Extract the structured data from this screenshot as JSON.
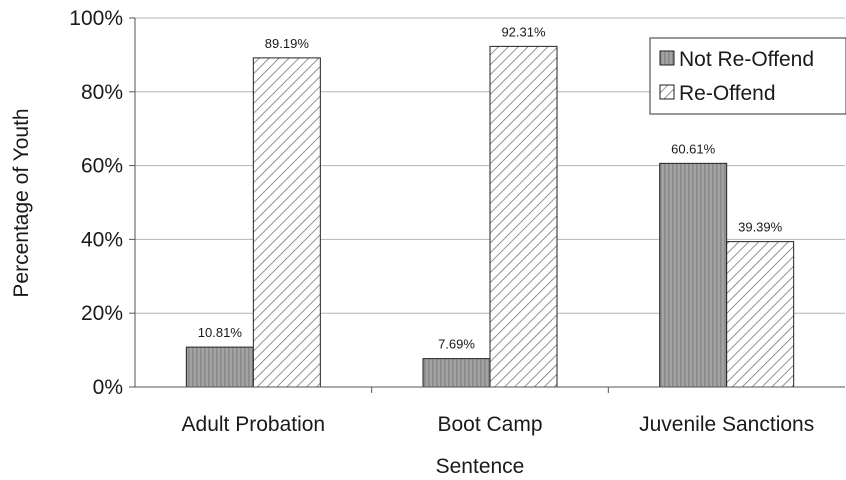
{
  "chart_data": {
    "type": "bar",
    "title": "",
    "xlabel": "Sentence",
    "ylabel": "Percentage of Youth",
    "categories": [
      "Adult Probation",
      "Boot Camp",
      "Juvenile Sanctions"
    ],
    "series": [
      {
        "name": "Not Re-Offend",
        "values": [
          10.81,
          7.69,
          60.61
        ],
        "labels": [
          "10.81%",
          "7.69%",
          "60.61%"
        ],
        "pattern": "vertical-stripe-gray",
        "color": "#9a9a9a"
      },
      {
        "name": "Re-Offend",
        "values": [
          89.19,
          92.31,
          39.39
        ],
        "labels": [
          "89.19%",
          "92.31%",
          "39.39%"
        ],
        "pattern": "diagonal-hatch",
        "color": "#ffffff"
      }
    ],
    "ylim": [
      0,
      100
    ],
    "yticks": [
      0,
      20,
      40,
      60,
      80,
      100
    ],
    "ytick_labels": [
      "0%",
      "20%",
      "40%",
      "60%",
      "80%",
      "100%"
    ],
    "grid": true,
    "legend_position": "top-right"
  }
}
